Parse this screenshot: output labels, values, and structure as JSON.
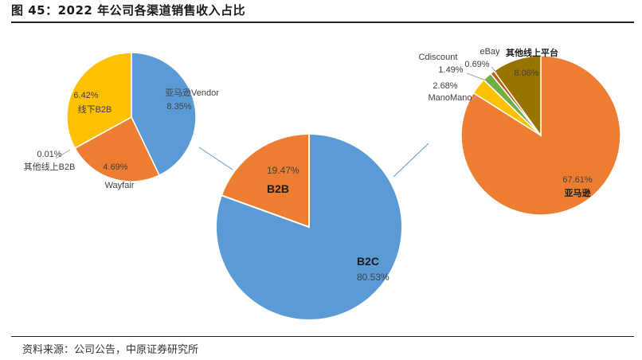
{
  "title": "图 45：2022 年公司各渠道销售收入占比",
  "source": "资料来源：公司公告，中原证券研究所",
  "chart_data": [
    {
      "id": "main",
      "type": "pie",
      "categories": [
        "B2C",
        "B2B"
      ],
      "values": [
        80.53,
        19.47
      ],
      "value_labels": [
        "80.53%",
        "19.47%"
      ],
      "colors": [
        "#5B9BD5",
        "#ED7D31"
      ]
    },
    {
      "id": "b2b",
      "type": "pie",
      "categories": [
        "亚马逊Vendor",
        "Wayfair",
        "其他线上B2B",
        "线下B2B"
      ],
      "values": [
        8.35,
        4.69,
        0.01,
        6.42
      ],
      "value_labels": [
        "8.35%",
        "4.69%",
        "0.01%",
        "6.42%"
      ],
      "colors": [
        "#5B9BD5",
        "#ED7D31",
        "#A5A5A5",
        "#FFC000"
      ]
    },
    {
      "id": "b2c",
      "type": "pie",
      "categories": [
        "亚马逊",
        "ManoMano",
        "Cdiscount",
        "eBay",
        "其他线上平台"
      ],
      "values": [
        67.61,
        2.68,
        1.49,
        0.69,
        8.06
      ],
      "value_labels": [
        "67.61%",
        "2.68%",
        "1.49%",
        "0.69%",
        "8.06%"
      ],
      "colors": [
        "#ED7D31",
        "#FFC000",
        "#70AD47",
        "#C55A11",
        "#997300"
      ]
    }
  ]
}
